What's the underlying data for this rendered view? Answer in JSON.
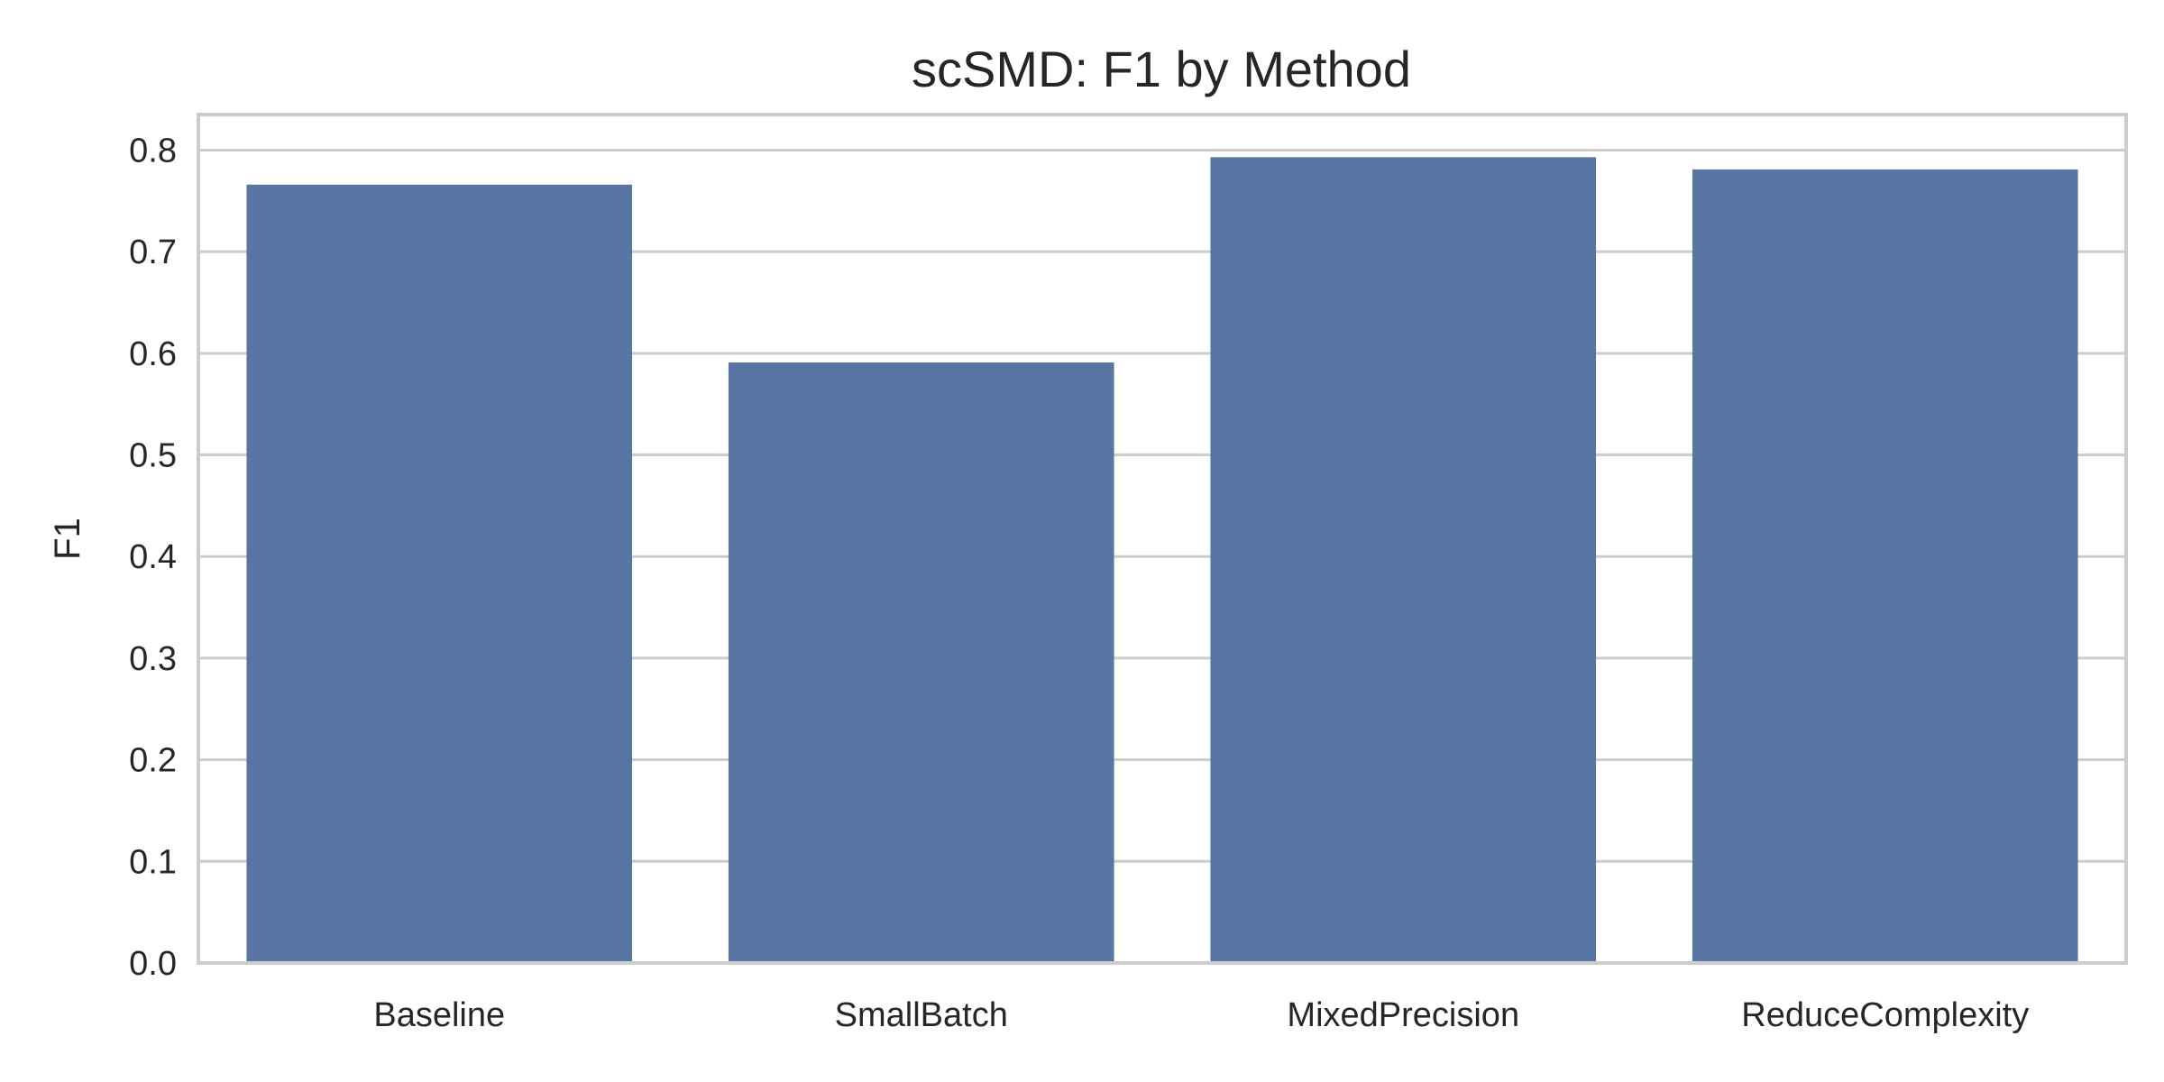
{
  "chart_data": {
    "type": "bar",
    "title": "scSMD: F1 by Method",
    "xlabel": "",
    "ylabel": "F1",
    "categories": [
      "Baseline",
      "SmallBatch",
      "MixedPrecision",
      "ReduceComplexity"
    ],
    "values": [
      0.766,
      0.591,
      0.793,
      0.781
    ],
    "ylim": [
      0.0,
      0.835
    ],
    "yticks": [
      0.0,
      0.1,
      0.2,
      0.3,
      0.4,
      0.5,
      0.6,
      0.7,
      0.8
    ],
    "ytick_labels": [
      "0.0",
      "0.1",
      "0.2",
      "0.3",
      "0.4",
      "0.5",
      "0.6",
      "0.7",
      "0.8"
    ],
    "grid": "horizontal",
    "bar_color": "#5975a4",
    "grid_color": "#cccccc"
  }
}
